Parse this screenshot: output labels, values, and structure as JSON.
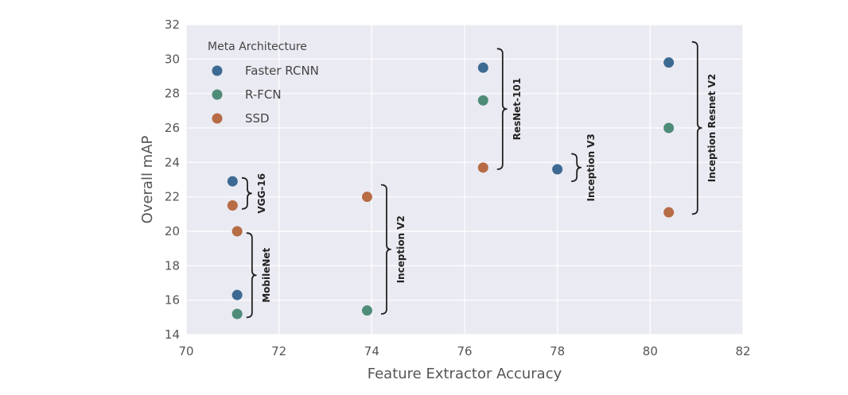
{
  "chart_data": {
    "type": "scatter",
    "xlabel": "Feature Extractor Accuracy",
    "ylabel": "Overall mAP",
    "xlim": [
      70,
      82
    ],
    "ylim": [
      14,
      32
    ],
    "xticks": [
      70,
      72,
      74,
      76,
      78,
      80,
      82
    ],
    "yticks": [
      14,
      16,
      18,
      20,
      22,
      24,
      26,
      28,
      30,
      32
    ],
    "grid": true,
    "background": "#eaeaf2",
    "legend": {
      "title": "Meta Architecture",
      "position": "top-left"
    },
    "series": [
      {
        "name": "Faster RCNN",
        "color": "#3d6a92",
        "points": [
          {
            "x": 71.0,
            "y": 22.9
          },
          {
            "x": 71.1,
            "y": 16.3
          },
          {
            "x": 76.4,
            "y": 29.5
          },
          {
            "x": 78.0,
            "y": 23.6
          },
          {
            "x": 80.4,
            "y": 29.8
          }
        ]
      },
      {
        "name": "R-FCN",
        "color": "#4e8c78",
        "points": [
          {
            "x": 71.1,
            "y": 15.2
          },
          {
            "x": 73.9,
            "y": 15.4
          },
          {
            "x": 76.4,
            "y": 27.6
          },
          {
            "x": 80.4,
            "y": 26.0
          }
        ]
      },
      {
        "name": "SSD",
        "color": "#b76c46",
        "points": [
          {
            "x": 71.0,
            "y": 21.5
          },
          {
            "x": 71.1,
            "y": 20.0
          },
          {
            "x": 73.9,
            "y": 22.0
          },
          {
            "x": 76.4,
            "y": 23.7
          },
          {
            "x": 80.4,
            "y": 21.1
          }
        ]
      }
    ],
    "annotations": [
      {
        "label": "VGG-16",
        "x": 71.2,
        "y_range": [
          21.3,
          23.1
        ]
      },
      {
        "label": "MobileNet",
        "x": 71.3,
        "y_range": [
          15.0,
          19.9
        ]
      },
      {
        "label": "Inception V2",
        "x": 74.2,
        "y_range": [
          15.2,
          22.7
        ]
      },
      {
        "label": "ResNet-101",
        "x": 76.7,
        "y_range": [
          23.6,
          30.6
        ]
      },
      {
        "label": "Inception V3",
        "x": 78.3,
        "y_range": [
          22.9,
          24.5
        ]
      },
      {
        "label": "Inception Resnet V2",
        "x": 80.9,
        "y_range": [
          21.0,
          31.0
        ]
      }
    ]
  }
}
